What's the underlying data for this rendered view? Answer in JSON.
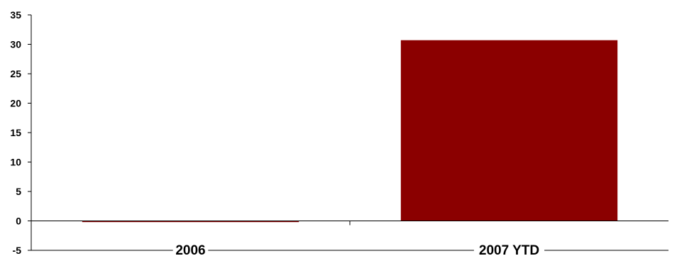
{
  "chart_data": {
    "type": "bar",
    "title": "",
    "xlabel": "",
    "ylabel": "",
    "categories": [
      "2006",
      "2007 YTD"
    ],
    "values": [
      -0.2,
      30.7
    ],
    "ylim": [
      -5,
      35
    ],
    "yticks": [
      "-5",
      "0",
      "5",
      "10",
      "15",
      "20",
      "25",
      "30",
      "35"
    ],
    "grid": false,
    "legend": "none",
    "bar_color": "#8B0000"
  }
}
